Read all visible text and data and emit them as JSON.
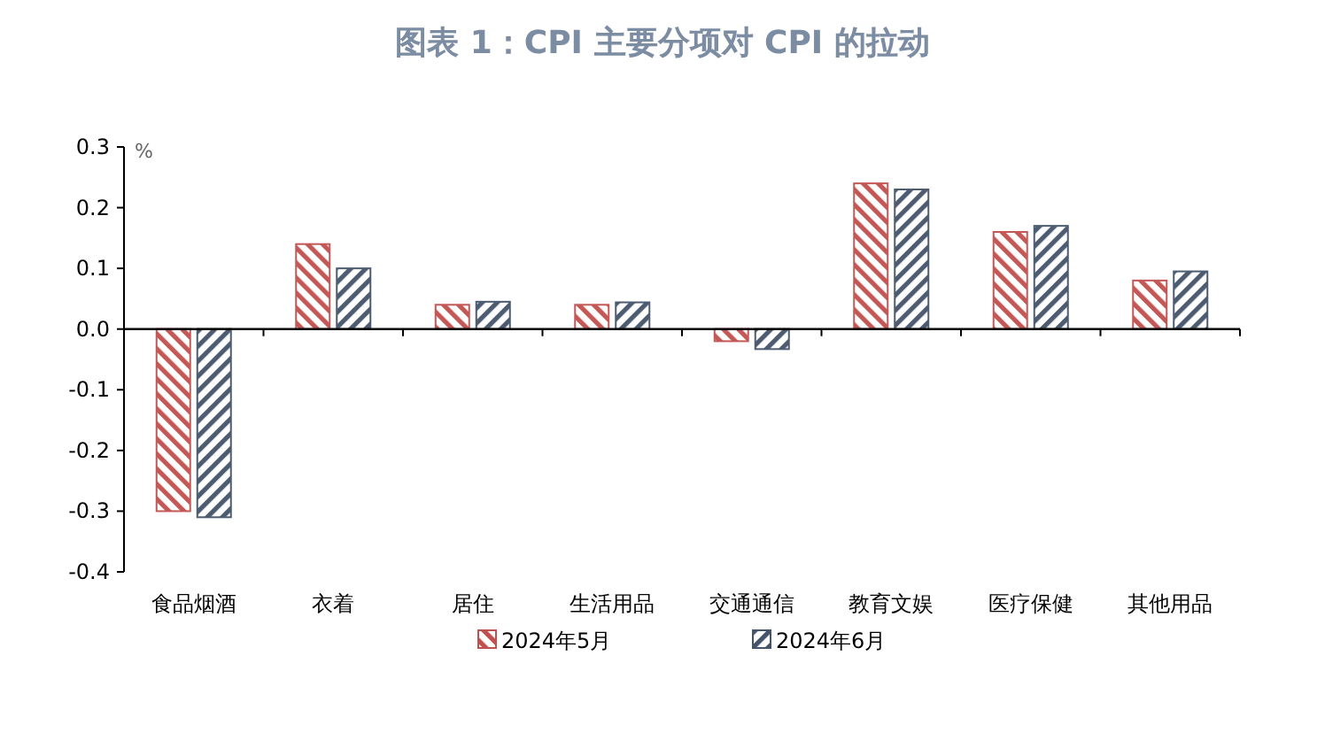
{
  "chart_data": {
    "type": "bar",
    "title": "图表 1：CPI 主要分项对 CPI 的拉动",
    "ylabel": "%",
    "categories": [
      "食品烟酒",
      "衣着",
      "居住",
      "生活用品",
      "交通通信",
      "教育文娱",
      "医疗保健",
      "其他用品"
    ],
    "series": [
      {
        "name": "2024年5月",
        "color": "#c0504d",
        "values": [
          -0.3,
          0.14,
          0.04,
          0.04,
          -0.02,
          0.24,
          0.16,
          0.08
        ]
      },
      {
        "name": "2024年6月",
        "color": "#44546a",
        "values": [
          -0.31,
          0.1,
          0.045,
          0.044,
          -0.033,
          0.23,
          0.17,
          0.095
        ]
      }
    ],
    "ylim": [
      -0.4,
      0.3
    ],
    "yticks": [
      {
        "value": -0.4,
        "label": "-0.4"
      },
      {
        "value": -0.3,
        "label": "-0.3"
      },
      {
        "value": -0.2,
        "label": "-0.2"
      },
      {
        "value": -0.1,
        "label": "-0.1"
      },
      {
        "value": 0,
        "label": "0.0"
      },
      {
        "value": 0.1,
        "label": "0.1"
      },
      {
        "value": 0.2,
        "label": "0.2"
      },
      {
        "value": 0.3,
        "label": "0.3"
      }
    ],
    "legend": "bottom"
  }
}
